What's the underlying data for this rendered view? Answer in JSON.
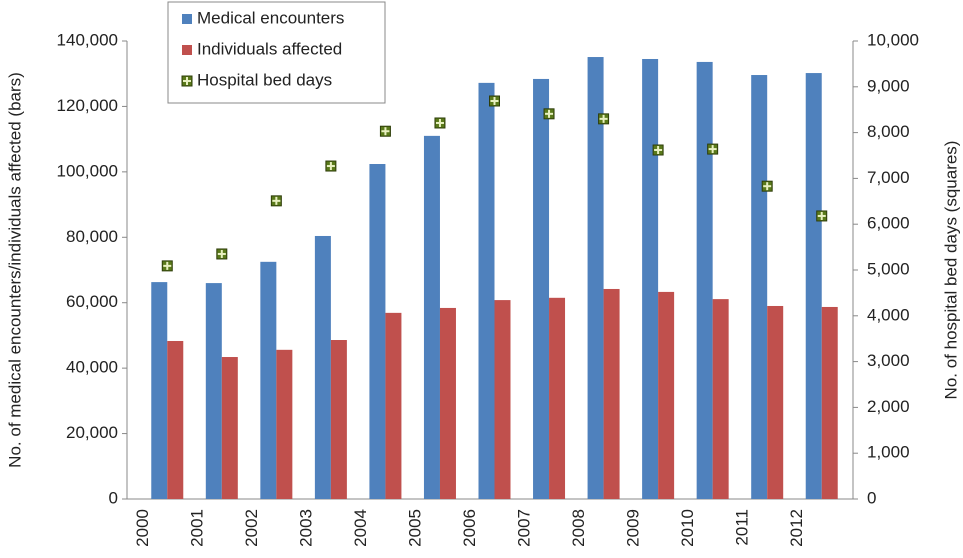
{
  "chart_data": {
    "type": "bar",
    "categories": [
      "2000",
      "2001",
      "2002",
      "2003",
      "2004",
      "2005",
      "2006",
      "2007",
      "2008",
      "2009",
      "2010",
      "2011",
      "2012"
    ],
    "y_label": "No. of medical encounters/individuals affected (bars)",
    "y2_label": "No. of hospital bed days (squares)",
    "ylim": [
      0,
      140000
    ],
    "yticks": [
      0,
      {
        "value": 20000,
        "label": "20,000"
      },
      {
        "value": 40000,
        "label": "40,000"
      },
      {
        "value": 60000,
        "label": "60,000"
      },
      {
        "value": 80000,
        "label": "80,000"
      },
      {
        "value": 100000,
        "label": "100,000"
      },
      {
        "value": 120000,
        "label": "120,000"
      },
      {
        "value": 140000,
        "label": "140,000"
      }
    ],
    "y2lim": [
      0,
      10000
    ],
    "y2ticks": [
      0,
      {
        "value": 1000,
        "label": "1,000"
      },
      {
        "value": 2000,
        "label": "2,000"
      },
      {
        "value": 3000,
        "label": "3,000"
      },
      {
        "value": 4000,
        "label": "4,000"
      },
      {
        "value": 5000,
        "label": "5,000"
      },
      {
        "value": 6000,
        "label": "6,000"
      },
      {
        "value": 7000,
        "label": "7,000"
      },
      {
        "value": 8000,
        "label": "8,000"
      },
      {
        "value": 9000,
        "label": "9,000"
      },
      {
        "value": 10000,
        "label": "10,000"
      }
    ],
    "series": [
      {
        "name": "Medical encounters",
        "color": "#4f81bd",
        "kind": "bar",
        "values": [
          66300,
          66000,
          72500,
          80400,
          102400,
          111000,
          127200,
          128400,
          135100,
          134500,
          133600,
          129600,
          130200
        ]
      },
      {
        "name": "Individuals affected",
        "color": "#c0504d",
        "kind": "bar",
        "values": [
          48300,
          43400,
          45600,
          48600,
          56900,
          58400,
          60800,
          61500,
          64200,
          63300,
          61100,
          59000,
          58700
        ]
      },
      {
        "name": "Hospital bed days",
        "color": "#5a7a1a",
        "kind": "square",
        "axis": "y2",
        "values": [
          5090,
          5350,
          6510,
          7270,
          8030,
          8210,
          8690,
          8410,
          8300,
          7620,
          7640,
          6830,
          6180
        ]
      }
    ],
    "legend": "top-left"
  }
}
